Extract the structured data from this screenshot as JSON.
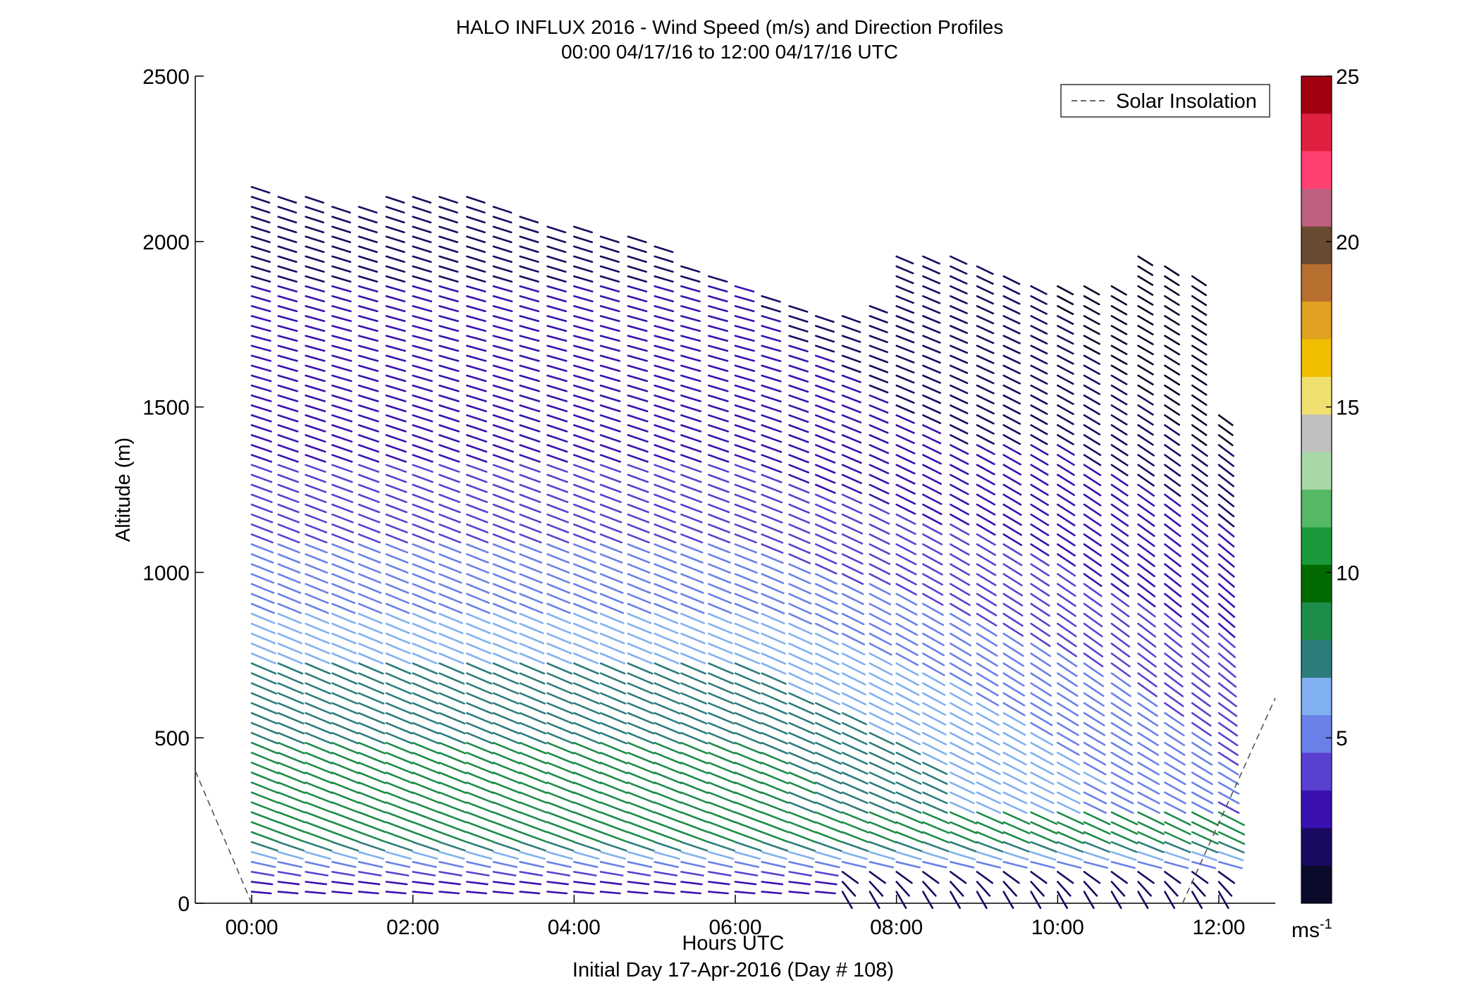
{
  "chart_data": {
    "type": "quiver",
    "title": "HALO INFLUX 2016 - Wind Speed (m/s) and Direction Profiles",
    "subtitle": "00:00 04/17/16 to 12:00 04/17/16  UTC",
    "xlabel": "Hours UTC",
    "xlabel2": "Initial Day 17-Apr-2016 (Day # 108)",
    "ylabel": "Altitude (m)",
    "xlim": [
      -0.7,
      12.7
    ],
    "ylim": [
      0,
      2500
    ],
    "x_ticks": [
      0,
      2,
      4,
      6,
      8,
      10,
      12
    ],
    "x_tick_labels": [
      "00:00",
      "02:00",
      "04:00",
      "06:00",
      "08:00",
      "10:00",
      "12:00"
    ],
    "y_ticks": [
      0,
      500,
      1000,
      1500,
      2000,
      2500
    ],
    "y_tick_labels": [
      "0",
      "500",
      "1000",
      "1500",
      "2000",
      "2500"
    ],
    "legend": {
      "entries": [
        "Solar Insolation"
      ],
      "placement": "top-right",
      "style": "dashed-gray"
    },
    "colorbar": {
      "range": [
        0,
        25
      ],
      "ticks": [
        5,
        10,
        15,
        20,
        25
      ],
      "tick_labels": [
        "5",
        "10",
        "15",
        "20",
        "25"
      ],
      "unit_label": "ms",
      "unit_exponent": "-1",
      "colors": [
        "#0a0a2a",
        "#1a0a60",
        "#3a10b0",
        "#5a40d0",
        "#6a80e8",
        "#80b0f0",
        "#2e7d7d",
        "#1e8c4a",
        "#006a00",
        "#1a9a3a",
        "#55b865",
        "#a8d8a8",
        "#c0c0c0",
        "#f0e070",
        "#f0c000",
        "#e0a020",
        "#b87030",
        "#6a4a30",
        "#c06080",
        "#ff4070",
        "#e02040",
        "#a00010"
      ]
    },
    "solar_insolation": [
      {
        "x": -0.7,
        "y": 400
      },
      {
        "x": 0.0,
        "y": 0
      },
      {
        "x": 11.55,
        "y": 0
      },
      {
        "x": 12.7,
        "y": 620
      }
    ],
    "wind_profile_columns": {
      "times": [
        0.0,
        0.33,
        0.67,
        1.0,
        1.33,
        1.67,
        2.0,
        2.33,
        2.67,
        3.0,
        3.33,
        3.67,
        4.0,
        4.33,
        4.67,
        5.0,
        5.33,
        5.67,
        6.0,
        6.33,
        6.67,
        7.0,
        7.33,
        7.67,
        8.0,
        8.33,
        8.67,
        9.0,
        9.33,
        9.67,
        10.0,
        10.33,
        10.67,
        11.0,
        11.33,
        11.67,
        12.0
      ],
      "top_altitudes": [
        2170,
        2150,
        2140,
        2130,
        2120,
        2160,
        2160,
        2150,
        2140,
        2130,
        2100,
        2070,
        2050,
        2040,
        2030,
        1990,
        1940,
        1900,
        1870,
        1850,
        1820,
        1800,
        1800,
        1810,
        1980,
        1960,
        1960,
        1940,
        1920,
        1880,
        1870,
        1870,
        1880,
        1960,
        1950,
        1900,
        1500
      ],
      "altitude_step": 30
    },
    "speed_layers": [
      {
        "altitude": 40,
        "speed": 2.5,
        "direction_deg": 275
      },
      {
        "altitude": 100,
        "speed": 4.5,
        "direction_deg": 280
      },
      {
        "altitude": 200,
        "speed": 8.0,
        "direction_deg": 290
      },
      {
        "altitude": 400,
        "speed": 8.5,
        "direction_deg": 292
      },
      {
        "altitude": 700,
        "speed": 7.0,
        "direction_deg": 293
      },
      {
        "altitude": 1000,
        "speed": 5.0,
        "direction_deg": 292
      },
      {
        "altitude": 1300,
        "speed": 3.5,
        "direction_deg": 290
      },
      {
        "altitude": 1700,
        "speed": 2.5,
        "direction_deg": 285
      },
      {
        "altitude": 2100,
        "speed": 2.0,
        "direction_deg": 288
      }
    ]
  }
}
